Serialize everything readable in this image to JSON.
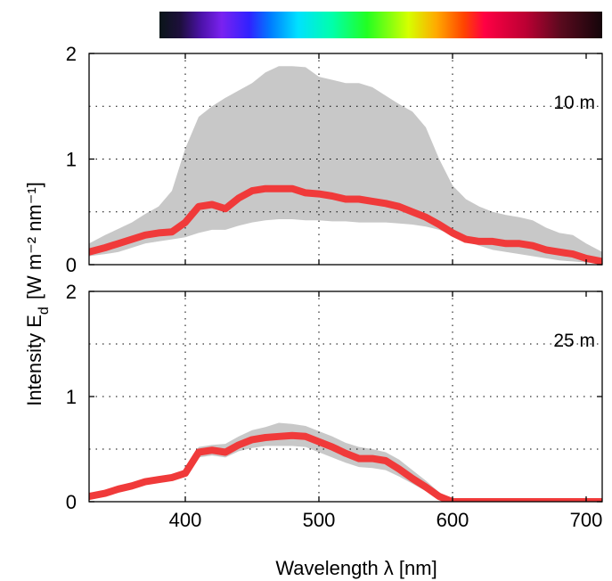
{
  "chart_data": {
    "type": "area",
    "xlabel": "Wavelength  λ  [nm]",
    "ylabel": "Intensity  E",
    "ylabel_sub": "d",
    "ylabel_units": "[W m⁻² nm⁻¹]",
    "xlim": [
      328,
      712
    ],
    "x_ticks": [
      400,
      500,
      600,
      700
    ],
    "y_ticks": [
      0,
      1,
      2
    ],
    "ylim": [
      0,
      2
    ],
    "grid": true,
    "colorbar": {
      "stops": [
        {
          "nm": 380,
          "color": "#0a1518"
        },
        {
          "nm": 395,
          "color": "#1d0f3c"
        },
        {
          "nm": 410,
          "color": "#4b12a8"
        },
        {
          "nm": 425,
          "color": "#7a22f0"
        },
        {
          "nm": 445,
          "color": "#3022ff"
        },
        {
          "nm": 460,
          "color": "#007bff"
        },
        {
          "nm": 480,
          "color": "#00e1ff"
        },
        {
          "nm": 505,
          "color": "#00ffaa"
        },
        {
          "nm": 530,
          "color": "#22ff22"
        },
        {
          "nm": 560,
          "color": "#d6ff00"
        },
        {
          "nm": 580,
          "color": "#ffaa00"
        },
        {
          "nm": 600,
          "color": "#ff4400"
        },
        {
          "nm": 615,
          "color": "#ff0044"
        },
        {
          "nm": 645,
          "color": "#bb0033"
        },
        {
          "nm": 670,
          "color": "#5a0a1e"
        },
        {
          "nm": 700,
          "color": "#14050a"
        }
      ]
    },
    "panels": [
      {
        "depth_label": "10 m",
        "x": [
          328,
          340,
          350,
          360,
          370,
          380,
          390,
          400,
          410,
          420,
          430,
          440,
          450,
          460,
          470,
          480,
          490,
          500,
          510,
          520,
          530,
          540,
          550,
          560,
          570,
          580,
          590,
          600,
          610,
          620,
          630,
          640,
          650,
          660,
          670,
          680,
          690,
          700,
          712
        ],
        "mean": [
          0.12,
          0.16,
          0.2,
          0.24,
          0.28,
          0.3,
          0.31,
          0.4,
          0.55,
          0.57,
          0.53,
          0.63,
          0.7,
          0.72,
          0.72,
          0.72,
          0.68,
          0.67,
          0.65,
          0.62,
          0.62,
          0.6,
          0.58,
          0.55,
          0.5,
          0.45,
          0.38,
          0.3,
          0.24,
          0.22,
          0.22,
          0.2,
          0.2,
          0.18,
          0.14,
          0.12,
          0.1,
          0.06,
          0.03
        ],
        "lower": [
          0.08,
          0.1,
          0.12,
          0.16,
          0.2,
          0.22,
          0.24,
          0.26,
          0.3,
          0.33,
          0.33,
          0.37,
          0.4,
          0.42,
          0.43,
          0.43,
          0.42,
          0.42,
          0.41,
          0.41,
          0.4,
          0.4,
          0.4,
          0.39,
          0.38,
          0.36,
          0.33,
          0.28,
          0.22,
          0.18,
          0.14,
          0.12,
          0.1,
          0.08,
          0.06,
          0.04,
          0.03,
          0.02,
          0.01
        ],
        "upper": [
          0.2,
          0.28,
          0.34,
          0.4,
          0.48,
          0.55,
          0.7,
          1.1,
          1.4,
          1.5,
          1.58,
          1.65,
          1.72,
          1.82,
          1.88,
          1.88,
          1.87,
          1.78,
          1.75,
          1.72,
          1.72,
          1.68,
          1.6,
          1.52,
          1.45,
          1.3,
          1.0,
          0.75,
          0.62,
          0.55,
          0.5,
          0.47,
          0.45,
          0.42,
          0.35,
          0.3,
          0.28,
          0.2,
          0.12
        ]
      },
      {
        "depth_label": "25 m",
        "x": [
          328,
          340,
          350,
          360,
          370,
          380,
          390,
          400,
          410,
          420,
          430,
          440,
          450,
          460,
          470,
          480,
          490,
          500,
          510,
          520,
          530,
          540,
          550,
          560,
          570,
          580,
          590,
          600,
          610,
          620,
          640,
          660,
          680,
          700,
          712
        ],
        "mean": [
          0.05,
          0.08,
          0.12,
          0.15,
          0.19,
          0.21,
          0.23,
          0.27,
          0.47,
          0.49,
          0.47,
          0.54,
          0.59,
          0.61,
          0.62,
          0.63,
          0.62,
          0.57,
          0.52,
          0.46,
          0.41,
          0.41,
          0.39,
          0.31,
          0.22,
          0.14,
          0.05,
          0.0,
          0.0,
          0.0,
          0.0,
          0.0,
          0.0,
          0.0,
          0.0
        ],
        "lower": [
          0.04,
          0.06,
          0.1,
          0.13,
          0.17,
          0.19,
          0.21,
          0.24,
          0.42,
          0.44,
          0.42,
          0.48,
          0.51,
          0.53,
          0.53,
          0.53,
          0.52,
          0.47,
          0.42,
          0.37,
          0.33,
          0.32,
          0.3,
          0.24,
          0.17,
          0.1,
          0.03,
          0.0,
          0.0,
          0.0,
          0.0,
          0.0,
          0.0,
          0.0,
          0.0
        ],
        "upper": [
          0.06,
          0.1,
          0.14,
          0.17,
          0.21,
          0.23,
          0.25,
          0.31,
          0.52,
          0.54,
          0.55,
          0.62,
          0.68,
          0.71,
          0.75,
          0.74,
          0.72,
          0.67,
          0.62,
          0.56,
          0.52,
          0.5,
          0.47,
          0.4,
          0.3,
          0.2,
          0.09,
          0.02,
          0.0,
          0.0,
          0.0,
          0.0,
          0.0,
          0.0,
          0.0
        ]
      }
    ]
  }
}
